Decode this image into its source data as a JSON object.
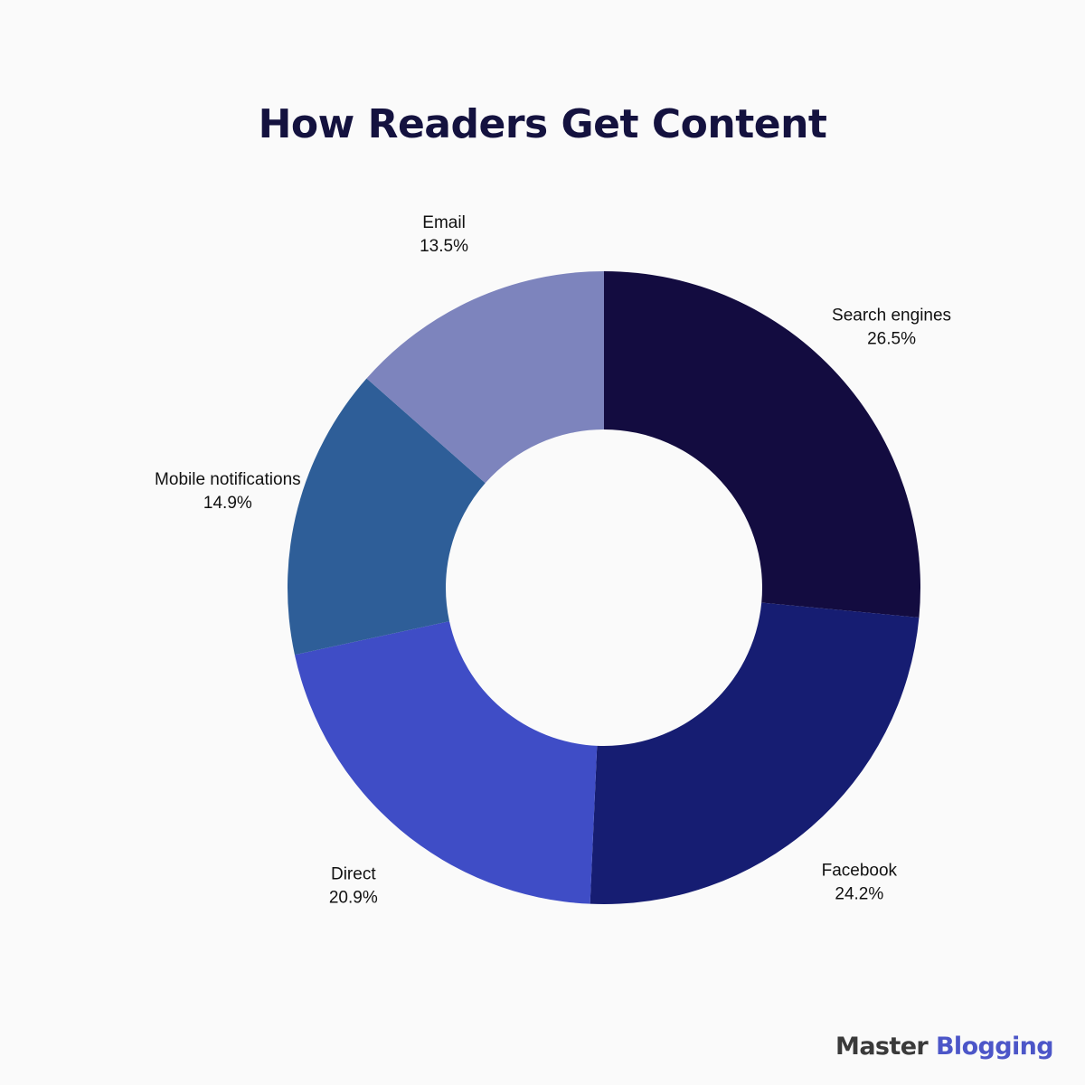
{
  "colors": {
    "title": "#14123f",
    "background": "#fafafa",
    "brand_dark": "#3a3a3a",
    "brand_accent": "#4c56c8"
  },
  "brand": {
    "part1": "Master",
    "part2": "Blogging"
  },
  "chart_data": {
    "type": "pie",
    "title": "How Readers Get Content",
    "style": "donut",
    "start": "12 o'clock",
    "direction": "clockwise",
    "slices": [
      {
        "label": "Search engines",
        "value": 26.5,
        "display": "26.5%",
        "color": "#130c40"
      },
      {
        "label": "Facebook",
        "value": 24.2,
        "display": "24.2%",
        "color": "#161d72"
      },
      {
        "label": "Direct",
        "value": 20.9,
        "display": "20.9%",
        "color": "#3f4dc6"
      },
      {
        "label": "Mobile notifications",
        "value": 14.9,
        "display": "14.9%",
        "color": "#2e5e98"
      },
      {
        "label": "Email",
        "value": 13.5,
        "display": "13.5%",
        "color": "#7d84bd"
      }
    ]
  }
}
